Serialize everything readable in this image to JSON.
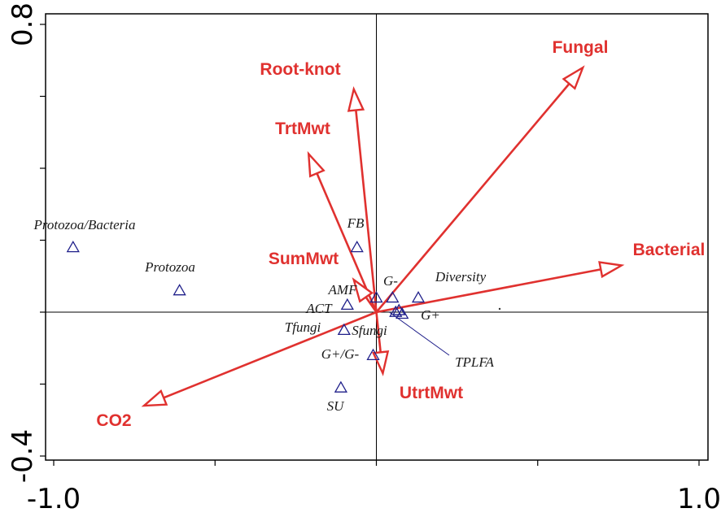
{
  "chart_data": {
    "type": "scatter",
    "subtype": "ordination-biplot",
    "xlim": [
      -1.0,
      1.0
    ],
    "ylim": [
      -0.45,
      0.85
    ],
    "x_tick_labels": [
      {
        "value": -1.0,
        "label": "-1.0"
      },
      {
        "value": 1.0,
        "label": "1.0"
      }
    ],
    "y_tick_labels": [
      {
        "value": 0.8,
        "label": "0.8"
      },
      {
        "value": -0.4,
        "label": "-0.4"
      }
    ],
    "x_minor_ticks": [
      -1.0,
      -0.5,
      0.0,
      0.5,
      1.0
    ],
    "y_minor_ticks": [
      -0.4,
      -0.2,
      0.0,
      0.2,
      0.4,
      0.6,
      0.8
    ],
    "origin_lines": true,
    "colors": {
      "environmental": "#e0312f",
      "species": "#1f1f8a",
      "species_text": "#1a1a1a"
    },
    "environmental_vectors": [
      {
        "name": "Fungal",
        "x": 0.64,
        "y": 0.68
      },
      {
        "name": "Root-knot",
        "x": -0.07,
        "y": 0.62
      },
      {
        "name": "TrtMwt",
        "x": -0.21,
        "y": 0.44
      },
      {
        "name": "SumMwt",
        "x": -0.07,
        "y": 0.09
      },
      {
        "name": "Bacterial",
        "x": 0.76,
        "y": 0.13
      },
      {
        "name": "UtrtMwt",
        "x": 0.02,
        "y": -0.17
      },
      {
        "name": "CO2",
        "x": -0.72,
        "y": -0.26
      }
    ],
    "species_points": [
      {
        "name": "Protozoa/Bacteria",
        "x": -0.94,
        "y": 0.18
      },
      {
        "name": "Protozoa",
        "x": -0.61,
        "y": 0.06
      },
      {
        "name": "FB",
        "x": -0.06,
        "y": 0.18
      },
      {
        "name": "G-",
        "x": 0.05,
        "y": 0.04
      },
      {
        "name": "Diversity",
        "x": 0.13,
        "y": 0.04
      },
      {
        "name": "AMF",
        "x": 0.0,
        "y": 0.04
      },
      {
        "name": "ACT",
        "x": -0.09,
        "y": 0.02
      },
      {
        "name": "G+",
        "x": 0.08,
        "y": -0.005
      },
      {
        "name": "TPLFA",
        "x": 0.06,
        "y": 0.0
      },
      {
        "name": "Tfungi",
        "x": -0.1,
        "y": -0.05
      },
      {
        "name": "Sfungi",
        "x": 0.07,
        "y": 0.005
      },
      {
        "name": "G+/G-",
        "x": -0.01,
        "y": -0.12
      },
      {
        "name": "SU",
        "x": -0.11,
        "y": -0.21
      }
    ]
  }
}
